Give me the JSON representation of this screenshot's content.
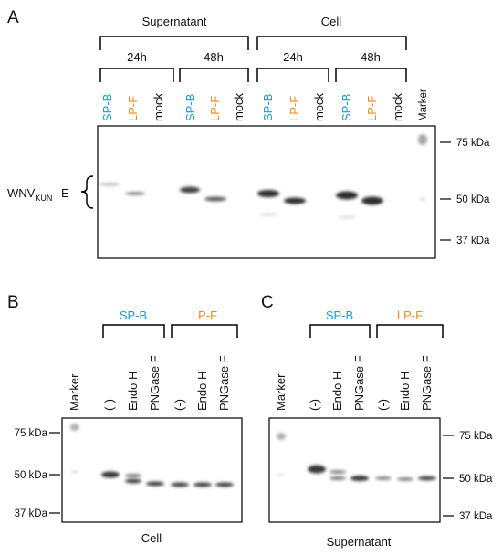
{
  "panel_a": {
    "label": "A",
    "groups": [
      {
        "label": "Supernatant",
        "timepoints": [
          {
            "label": "24h",
            "lanes": [
              "SP-B",
              "LP-F",
              "mock"
            ]
          },
          {
            "label": "48h",
            "lanes": [
              "SP-B",
              "LP-F",
              "mock"
            ]
          }
        ]
      },
      {
        "label": "Cell",
        "timepoints": [
          {
            "label": "24h",
            "lanes": [
              "SP-B",
              "LP-F",
              "mock"
            ]
          },
          {
            "label": "48h",
            "lanes": [
              "SP-B",
              "LP-F",
              "mock"
            ]
          }
        ]
      }
    ],
    "marker": "Marker",
    "markers": [
      "75 kDa",
      "50 kDa",
      "37 kDa"
    ],
    "protein": {
      "main": "WNV",
      "sub": "KUN",
      "suffix": "E"
    }
  },
  "panel_b": {
    "label": "B",
    "groups": [
      {
        "label": "SP-B",
        "lanes": [
          "(-)",
          "Endo H",
          "PNGase F"
        ]
      },
      {
        "label": "LP-F",
        "lanes": [
          "(-)",
          "Endo H",
          "PNGase F"
        ]
      }
    ],
    "marker": "Marker",
    "markers": [
      "75 kDa",
      "50 kDa",
      "37 kDa"
    ],
    "caption": "Cell"
  },
  "panel_c": {
    "label": "C",
    "groups": [
      {
        "label": "SP-B",
        "lanes": [
          "(-)",
          "Endo H",
          "PNGase F"
        ]
      },
      {
        "label": "LP-F",
        "lanes": [
          "(-)",
          "Endo H",
          "PNGase F"
        ]
      }
    ],
    "marker": "Marker",
    "markers": [
      "75 kDa",
      "50 kDa",
      "37 kDa"
    ],
    "caption": "Supernatant"
  }
}
